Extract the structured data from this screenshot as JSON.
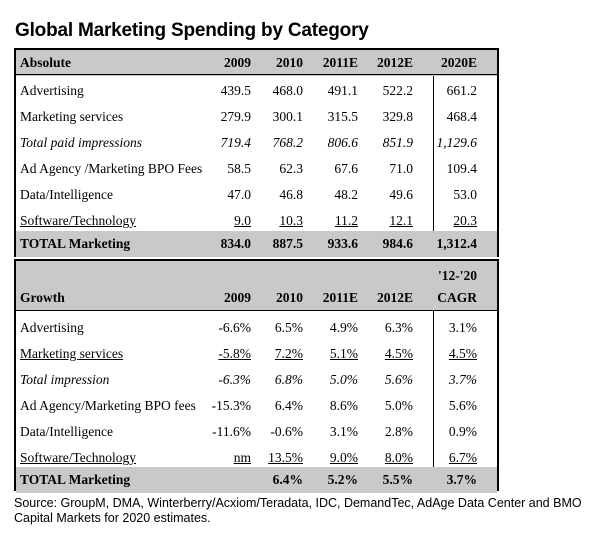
{
  "title": "Global Marketing Spending by Category",
  "absolute": {
    "header": [
      "Absolute",
      "2009",
      "2010",
      "2011E",
      "2012E",
      "2020E"
    ],
    "rows": [
      [
        "Advertising",
        "439.5",
        "468.0",
        "491.1",
        "522.2",
        "661.2"
      ],
      [
        "Marketing services",
        "279.9",
        "300.1",
        "315.5",
        "329.8",
        "468.4"
      ],
      [
        "Total paid impressions",
        "719.4",
        "768.2",
        "806.6",
        "851.9",
        "1,129.6"
      ],
      [
        "Ad Agency /Marketing BPO Fees",
        "58.5",
        "62.3",
        "67.6",
        "71.0",
        "109.4"
      ],
      [
        "Data/Intelligence",
        "47.0",
        "46.8",
        "48.2",
        "49.6",
        "53.0"
      ],
      [
        "Software/Technology",
        "9.0",
        "10.3",
        "11.2",
        "12.1",
        "20.3"
      ]
    ],
    "total": [
      "TOTAL Marketing",
      "834.0",
      "887.5",
      "933.6",
      "984.6",
      "1,312.4"
    ]
  },
  "growth": {
    "header_top": "'12-'20",
    "header": [
      "Growth",
      "2009",
      "2010",
      "2011E",
      "2012E",
      "CAGR"
    ],
    "rows": [
      [
        "Advertising",
        "-6.6%",
        "6.5%",
        "4.9%",
        "6.3%",
        "3.1%"
      ],
      [
        "Marketing services",
        "-5.8%",
        "7.2%",
        "5.1%",
        "4.5%",
        "4.5%"
      ],
      [
        "Total impression",
        "-6.3%",
        "6.8%",
        "5.0%",
        "5.6%",
        "3.7%"
      ],
      [
        "Ad Agency/Marketing BPO fees",
        "-15.3%",
        "6.4%",
        "8.6%",
        "5.0%",
        "5.6%"
      ],
      [
        "Data/Intelligence",
        "-11.6%",
        "-0.6%",
        "3.1%",
        "2.8%",
        "0.9%"
      ],
      [
        "Software/Technology",
        "nm",
        "13.5%",
        "9.0%",
        "8.0%",
        "6.7%"
      ]
    ],
    "total": [
      "TOTAL Marketing",
      "",
      "6.4%",
      "5.2%",
      "5.5%",
      "3.7%"
    ]
  },
  "source": "Source: GroupM, DMA, Winterberry/Acxiom/Teradata, IDC, DemandTec, AdAge Data Center and BMO Capital Markets for 2020 estimates."
}
